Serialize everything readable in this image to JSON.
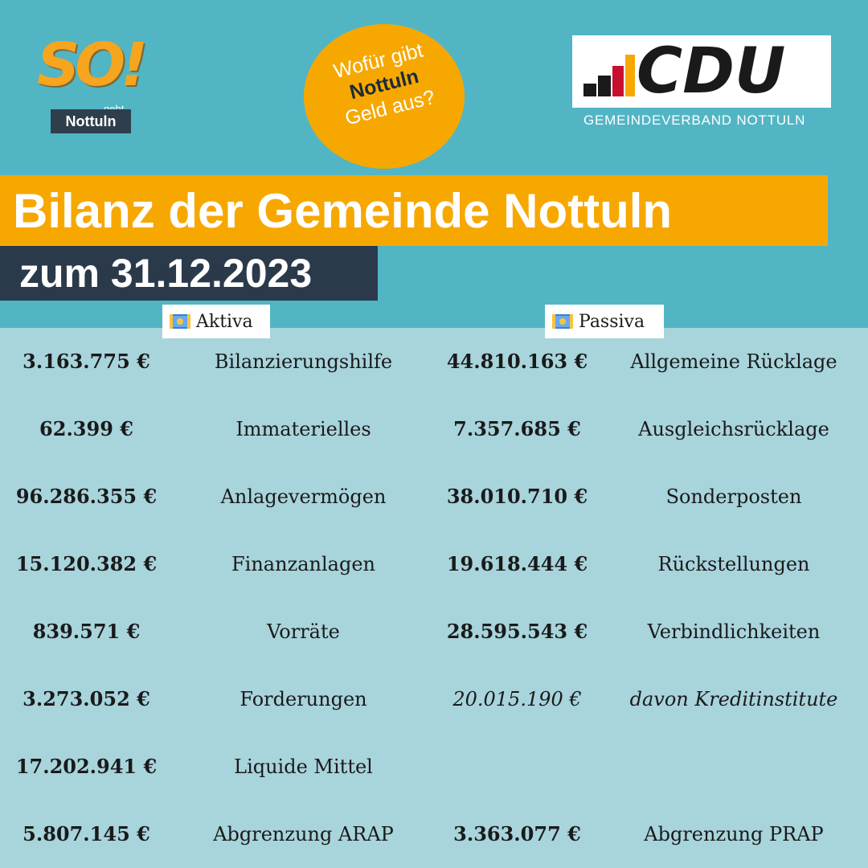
{
  "logo_left": {
    "so_text": "SO!",
    "geht": "geht",
    "town": "Nottuln"
  },
  "badge": {
    "line1": "Wofür gibt",
    "line2": "Nottuln",
    "line3": "Geld aus?"
  },
  "cdu": {
    "wordmark": "CDU",
    "subtitle": "GEMEINDEVERBAND NOTTULN",
    "bar_colors": [
      "#1a1a1a",
      "#c8102e",
      "#f7a800"
    ]
  },
  "title": "Bilanz der Gemeinde Nottuln",
  "date": "zum 31.12.2023",
  "colors": {
    "top_bg": "#52b5c4",
    "bottom_bg": "#a8d4dc",
    "accent_orange": "#f7a800",
    "dark_navy": "#2b3a4b"
  },
  "aktiva": {
    "header": "Aktiva",
    "icon": "money-bill-icon",
    "rows": [
      {
        "amount": "3.163.775 €",
        "label": "Bilanzierungshilfe"
      },
      {
        "amount": "62.399 €",
        "label": "Immaterielles"
      },
      {
        "amount": "96.286.355 €",
        "label": "Anlagevermögen"
      },
      {
        "amount": "15.120.382 €",
        "label": "Finanzanlagen"
      },
      {
        "amount": "839.571 €",
        "label": "Vorräte"
      },
      {
        "amount": "3.273.052 €",
        "label": "Forderungen"
      },
      {
        "amount": "17.202.941 €",
        "label": "Liquide Mittel"
      },
      {
        "amount": "5.807.145 €",
        "label": "Abgrenzung ARAP"
      }
    ]
  },
  "passiva": {
    "header": "Passiva",
    "icon": "money-bill-icon",
    "rows": [
      {
        "amount": "44.810.163 €",
        "label": "Allgemeine Rücklage"
      },
      {
        "amount": "7.357.685 €",
        "label": "Ausgleichsrücklage"
      },
      {
        "amount": "38.010.710 €",
        "label": "Sonderposten"
      },
      {
        "amount": "19.618.444 €",
        "label": "Rückstellungen"
      },
      {
        "amount": "28.595.543 €",
        "label": "Verbindlichkeiten"
      },
      {
        "amount": "20.015.190 €",
        "label": "davon Kreditinstitute"
      },
      {
        "amount": "3.363.077 €",
        "label": "Abgrenzung PRAP"
      }
    ]
  }
}
